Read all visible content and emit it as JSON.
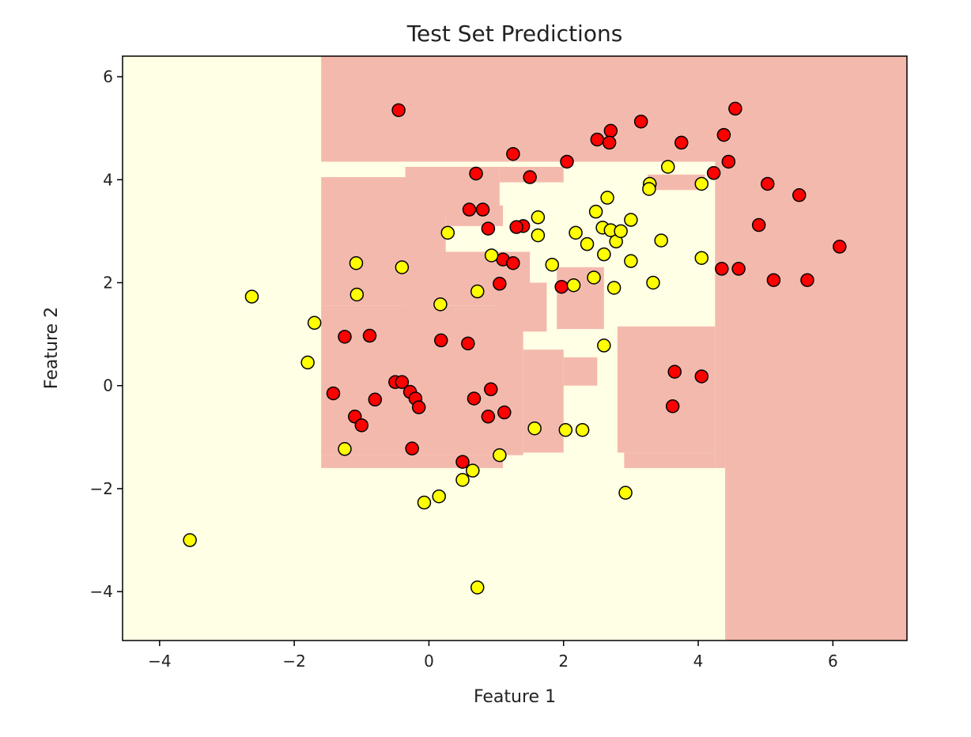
{
  "chart_data": {
    "type": "scatter",
    "title": "Test Set Predictions",
    "xlabel": "Feature 1",
    "ylabel": "Feature 2",
    "xlim": [
      -4.55,
      7.1
    ],
    "ylim": [
      -4.95,
      6.4
    ],
    "xticks": [
      -4,
      -2,
      0,
      2,
      4,
      6
    ],
    "yticks": [
      -4,
      -2,
      0,
      2,
      4,
      6
    ],
    "xtick_labels": [
      "−4",
      "−2",
      "0",
      "2",
      "4",
      "6"
    ],
    "ytick_labels": [
      "−4",
      "−2",
      "0",
      "2",
      "4",
      "6"
    ],
    "grid": false,
    "background_colors": {
      "class_0": "#FFFFE5",
      "class_1": "#F4B9AD"
    },
    "decision_regions": [
      {
        "class": 1,
        "x": [
          -1.6,
          7.1
        ],
        "y": [
          4.35,
          6.4
        ]
      },
      {
        "class": 1,
        "x": [
          4.4,
          7.1
        ],
        "y": [
          -4.95,
          4.35
        ]
      },
      {
        "class": 1,
        "x": [
          4.25,
          4.4
        ],
        "y": [
          -1.6,
          4.35
        ]
      },
      {
        "class": 1,
        "x": [
          -1.6,
          0.25
        ],
        "y": [
          1.55,
          4.05
        ]
      },
      {
        "class": 1,
        "x": [
          -0.35,
          1.05
        ],
        "y": [
          3.35,
          4.25
        ]
      },
      {
        "class": 1,
        "x": [
          0.25,
          1.1
        ],
        "y": [
          3.1,
          3.5
        ]
      },
      {
        "class": 1,
        "x": [
          1.05,
          2.0
        ],
        "y": [
          3.95,
          4.25
        ]
      },
      {
        "class": 1,
        "x": [
          3.25,
          4.1
        ],
        "y": [
          3.8,
          4.1
        ]
      },
      {
        "class": 1,
        "x": [
          -1.6,
          1.4
        ],
        "y": [
          -1.35,
          1.55
        ]
      },
      {
        "class": 1,
        "x": [
          -1.6,
          1.1
        ],
        "y": [
          -1.6,
          -1.35
        ]
      },
      {
        "class": 1,
        "x": [
          -0.4,
          1.5
        ],
        "y": [
          1.55,
          2.6
        ]
      },
      {
        "class": 1,
        "x": [
          1.0,
          1.75
        ],
        "y": [
          1.05,
          2.0
        ]
      },
      {
        "class": 1,
        "x": [
          1.4,
          2.0
        ],
        "y": [
          -1.3,
          0.7
        ]
      },
      {
        "class": 1,
        "x": [
          1.9,
          2.6
        ],
        "y": [
          1.1,
          2.3
        ]
      },
      {
        "class": 1,
        "x": [
          2.0,
          2.5
        ],
        "y": [
          0.0,
          0.55
        ]
      },
      {
        "class": 1,
        "x": [
          2.8,
          4.25
        ],
        "y": [
          -1.3,
          1.15
        ]
      },
      {
        "class": 1,
        "x": [
          2.9,
          4.25
        ],
        "y": [
          -1.6,
          -1.3
        ]
      }
    ],
    "series": [
      {
        "name": "",
        "color": "#FF0000",
        "x": [
          -0.45,
          0.7,
          0.6,
          0.8,
          0.88,
          1.25,
          1.4,
          1.5,
          1.3,
          1.1,
          1.25,
          1.05,
          1.97,
          2.05,
          2.5,
          2.7,
          2.68,
          3.15,
          3.75,
          4.38,
          4.55,
          4.45,
          4.23,
          5.03,
          5.5,
          4.9,
          6.1,
          4.35,
          4.6,
          5.12,
          5.62,
          3.65,
          4.05,
          3.62,
          -1.25,
          -0.88,
          -1.42,
          -1.1,
          -1.0,
          -0.8,
          -0.5,
          -0.4,
          -0.28,
          -0.2,
          -0.15,
          -0.25,
          0.18,
          0.58,
          0.67,
          0.92,
          0.88,
          1.12,
          0.5
        ],
        "y": [
          5.35,
          4.12,
          3.42,
          3.42,
          3.05,
          4.5,
          3.1,
          4.05,
          3.08,
          2.45,
          2.38,
          1.98,
          1.92,
          4.35,
          4.78,
          4.95,
          4.72,
          5.13,
          4.72,
          4.87,
          5.38,
          4.35,
          4.13,
          3.92,
          3.7,
          3.12,
          2.7,
          2.27,
          2.27,
          2.05,
          2.05,
          0.27,
          0.18,
          -0.4,
          0.95,
          0.97,
          -0.15,
          -0.6,
          -0.77,
          -0.27,
          0.07,
          0.07,
          -0.12,
          -0.25,
          -0.42,
          -1.22,
          0.88,
          0.82,
          -0.25,
          -0.07,
          -0.6,
          -0.52,
          -1.48
        ]
      },
      {
        "name": "",
        "color": "#FFFF00",
        "x": [
          -3.55,
          -2.63,
          -1.7,
          -1.8,
          -1.08,
          -1.07,
          -0.4,
          -1.25,
          0.17,
          0.28,
          0.72,
          0.93,
          1.62,
          1.62,
          1.83,
          2.15,
          2.18,
          2.35,
          2.48,
          2.45,
          2.58,
          2.6,
          2.65,
          2.7,
          2.75,
          2.78,
          2.85,
          3.0,
          3.0,
          3.28,
          3.27,
          3.33,
          3.45,
          3.55,
          4.05,
          4.05,
          2.6,
          1.57,
          2.03,
          2.28,
          2.92,
          0.5,
          0.65,
          1.05,
          -0.07,
          0.15,
          0.72
        ],
        "y": [
          -3.0,
          1.73,
          1.22,
          0.45,
          2.38,
          1.77,
          2.3,
          -1.23,
          1.58,
          2.97,
          1.83,
          2.53,
          3.27,
          2.92,
          2.35,
          1.95,
          2.97,
          2.75,
          3.38,
          2.1,
          3.07,
          2.55,
          3.65,
          3.02,
          1.9,
          2.8,
          3.0,
          3.22,
          2.42,
          3.92,
          3.82,
          2.0,
          2.82,
          4.25,
          3.92,
          2.48,
          0.78,
          -0.83,
          -0.86,
          -0.86,
          -2.08,
          -1.83,
          -1.65,
          -1.35,
          -2.27,
          -2.15,
          -3.92
        ]
      }
    ]
  }
}
